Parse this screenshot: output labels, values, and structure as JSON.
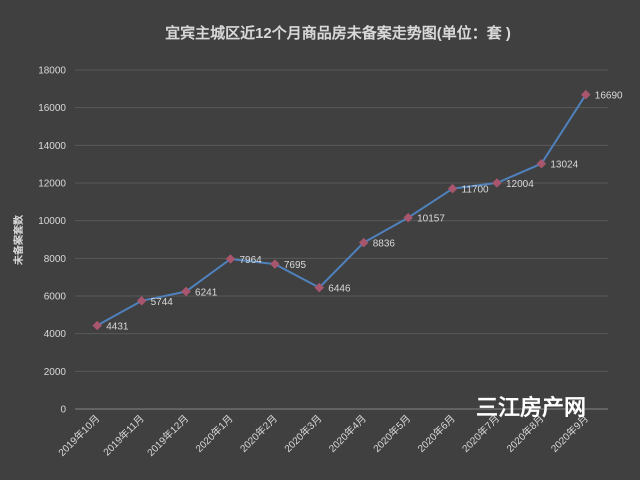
{
  "chart_data": {
    "type": "line",
    "title": "宜宾主城区近12个月商品房未备案走势图(单位：套 )",
    "xlabel": "",
    "ylabel": "未备案套数",
    "categories": [
      "2019年10月",
      "2019年11月",
      "2019年12月",
      "2020年1月",
      "2020年2月",
      "2020年3月",
      "2020年4月",
      "2020年5月",
      "2020年6月",
      "2020年7月",
      "2020年8月",
      "2020年9月"
    ],
    "series": [
      {
        "values": [
          4431,
          5744,
          6241,
          7964,
          7695,
          6446,
          8836,
          10157,
          11700,
          12004,
          13024,
          16690
        ]
      }
    ],
    "ylim": [
      0,
      18000
    ],
    "yticks": [
      0,
      2000,
      4000,
      6000,
      8000,
      10000,
      12000,
      14000,
      16000,
      18000
    ],
    "grid": true,
    "legend": "none",
    "marker": "diamond",
    "data_labels": true
  },
  "watermark": "三江房产网",
  "colors": {
    "background": "#404040",
    "text": "#d9d9d9",
    "grid": "#595959",
    "axis": "#858585",
    "line": "#4f81bd",
    "marker": "#a8566e",
    "watermark": "#ffffff"
  }
}
